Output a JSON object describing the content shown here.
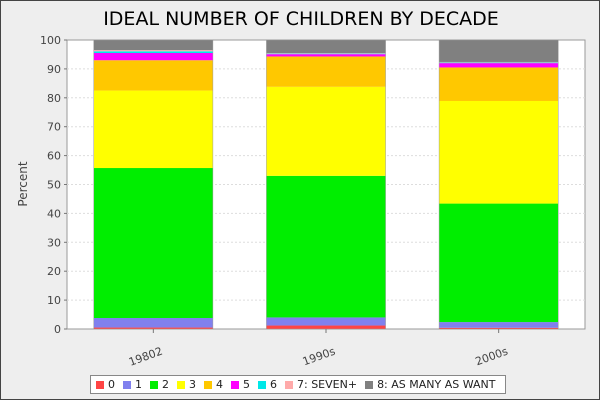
{
  "chart_data": {
    "type": "bar",
    "stacked": true,
    "title": "IDEAL NUMBER OF CHILDREN BY DECADE",
    "xlabel": "",
    "ylabel": "Percent",
    "ylim": [
      0,
      100
    ],
    "yticks": [
      0,
      10,
      20,
      30,
      40,
      50,
      60,
      70,
      80,
      90,
      100
    ],
    "grid": true,
    "legend_position": "bottom",
    "categories": [
      "19802",
      "1990s",
      "2000s"
    ],
    "series": [
      {
        "name": "0",
        "color": "#ff4444",
        "values": [
          0.5,
          1.2,
          0.4
        ]
      },
      {
        "name": "1",
        "color": "#8080ee",
        "values": [
          3.3,
          2.8,
          2.0
        ]
      },
      {
        "name": "2",
        "color": "#00ee00",
        "values": [
          51.9,
          49.0,
          41.0
        ]
      },
      {
        "name": "3",
        "color": "#ffff00",
        "values": [
          26.8,
          30.8,
          35.5
        ]
      },
      {
        "name": "4",
        "color": "#ffc800",
        "values": [
          10.5,
          10.5,
          11.6
        ]
      },
      {
        "name": "5",
        "color": "#ff00ff",
        "values": [
          2.5,
          0.8,
          1.5
        ]
      },
      {
        "name": "6",
        "color": "#00e8e8",
        "values": [
          0.6,
          0.2,
          0.2
        ]
      },
      {
        "name": "7:  SEVEN+",
        "color": "#ffaaaa",
        "values": [
          0.4,
          0.2,
          0.2
        ]
      },
      {
        "name": "8:  AS MANY AS WANT",
        "color": "#808080",
        "values": [
          3.5,
          4.5,
          7.6
        ]
      }
    ]
  }
}
